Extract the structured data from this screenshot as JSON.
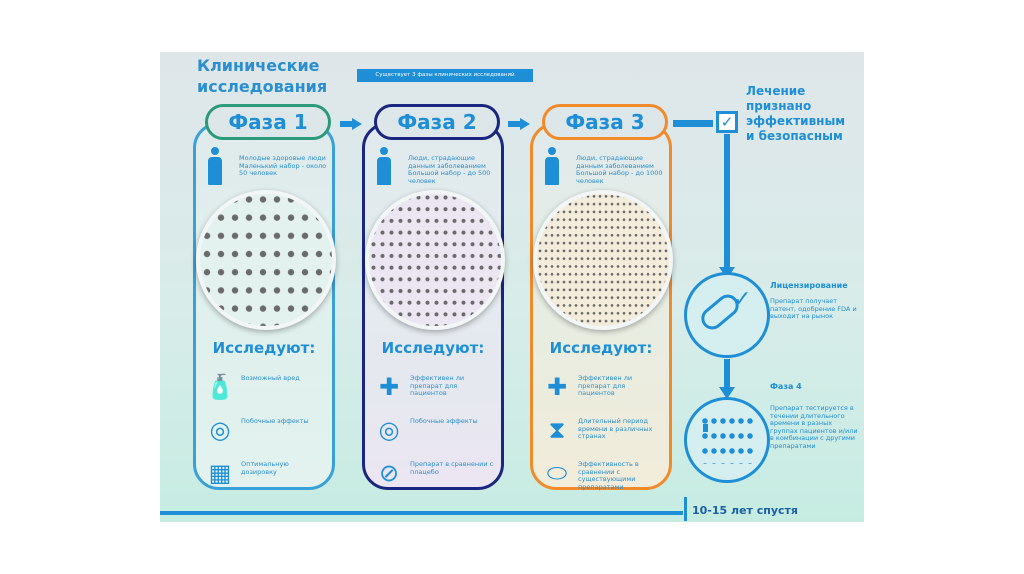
{
  "title": "Клинические исследования",
  "banner": "Существует 3 фазы клинических исследований",
  "phases": [
    {
      "label": "Фаза 1",
      "desc": "Молодые здоровые люди Маленький набор - около 50 человек",
      "heading": "Исследуют:",
      "pill_color": "#2a9a7a",
      "border_color": "#3aa0d8",
      "crowd_bg": "#e4f2ef",
      "items": [
        {
          "icon": "bottle-poison-icon",
          "text": "Возможный вред"
        },
        {
          "icon": "side-effects-icon",
          "text": "Побочные эффекты"
        },
        {
          "icon": "pill-box-icon",
          "text": "Оптимальную дозировку"
        }
      ]
    },
    {
      "label": "Фаза 2",
      "desc": "Люди, страдающие данным заболеванием Большой набор - до 500 человек",
      "heading": "Исследуют:",
      "pill_color": "#1a2680",
      "border_color": "#1a2680",
      "crowd_bg": "#ece6f2",
      "items": [
        {
          "icon": "medical-cross-icon",
          "text": "Эффективен ли препарат для пациентов"
        },
        {
          "icon": "side-effects-icon",
          "text": "Побочные эффекты"
        },
        {
          "icon": "placebo-pills-icon",
          "text": "Препарат в сравнении с плацебо"
        }
      ]
    },
    {
      "label": "Фаза 3",
      "desc": "Люди, страдающие данным заболеванием Большой набор - до 1000 человек",
      "heading": "Исследуют:",
      "pill_color": "#f08a2a",
      "border_color": "#f08a2a",
      "crowd_bg": "#f3ecda",
      "items": [
        {
          "icon": "medical-cross-icon",
          "text": "Эффективен ли препарат для пациентов"
        },
        {
          "icon": "hourglass-icon",
          "text": "Длительный период времени в различных странах"
        },
        {
          "icon": "capsule-tablet-icon",
          "text": "Эффективность в сравнении с существующими препаратами"
        }
      ]
    }
  ],
  "result": "Лечение признано эффективным и безопасным",
  "licensing": {
    "title": "Лицензирование",
    "text": "Препарат получает патент, одобрение FDA и выходит на рынок"
  },
  "phase4": {
    "title": "Фаза 4",
    "text": "Препарат тестируется в течении длительного времени в разных группах пациентов и/или в комбинации с другими препаратами"
  },
  "timeline": "10-15 лет спустя",
  "colors": {
    "accent": "#1e8fd6"
  }
}
